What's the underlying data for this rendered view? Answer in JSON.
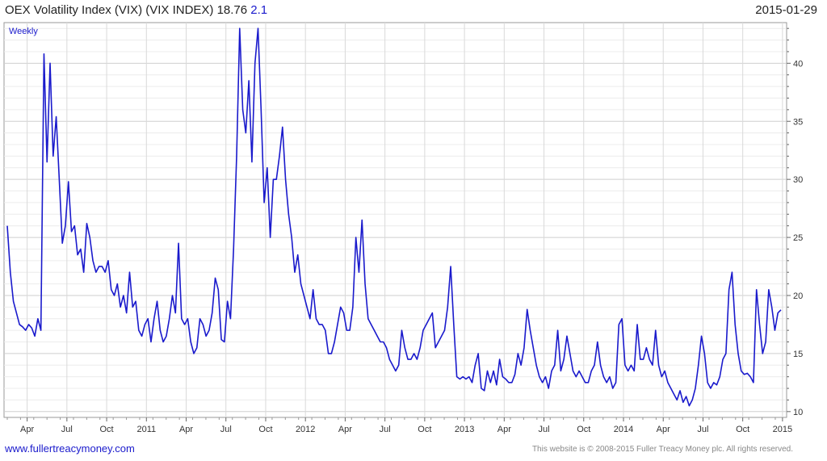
{
  "header": {
    "title": "OEX Volatility Index (VIX) (VIX INDEX) 18.76",
    "change": "2.1",
    "date": "2015-01-29"
  },
  "footer": {
    "site": "www.fullertreacymoney.com",
    "copyright": "This website is © 2008-2015 Fuller Treacy Money plc. All rights reserved."
  },
  "colors": {
    "line": "#1a1acc",
    "grid": "#d6d6d6",
    "frame": "#999999",
    "accent": "#1a1acc"
  },
  "chart_data": {
    "type": "line",
    "period_label": "Weekly",
    "ylim": [
      9.5,
      43.5
    ],
    "y_ticks": [
      10,
      15,
      20,
      25,
      30,
      35,
      40
    ],
    "x_tick_labels": [
      {
        "label": "Apr",
        "week": 6.5
      },
      {
        "label": "Jul",
        "week": 19.5
      },
      {
        "label": "Oct",
        "week": 32.5
      },
      {
        "label": "2011",
        "week": 45.5
      },
      {
        "label": "Apr",
        "week": 58.5
      },
      {
        "label": "Jul",
        "week": 71.5
      },
      {
        "label": "Oct",
        "week": 84.5
      },
      {
        "label": "2012",
        "week": 97.5
      },
      {
        "label": "Apr",
        "week": 110.5
      },
      {
        "label": "Jul",
        "week": 123.5
      },
      {
        "label": "Oct",
        "week": 136.5
      },
      {
        "label": "2013",
        "week": 149.5
      },
      {
        "label": "Apr",
        "week": 162.5
      },
      {
        "label": "Jul",
        "week": 175.5
      },
      {
        "label": "Oct",
        "week": 188.5
      },
      {
        "label": "2014",
        "week": 201.5
      },
      {
        "label": "Apr",
        "week": 214.5
      },
      {
        "label": "Jul",
        "week": 227.5
      },
      {
        "label": "Oct",
        "week": 240.5
      },
      {
        "label": "2015",
        "week": 253.5
      }
    ],
    "series": [
      {
        "values": [
          26.0,
          22.0,
          19.5,
          18.5,
          17.5,
          17.3,
          17.0,
          17.5,
          17.2,
          16.5,
          18.0,
          17.0,
          40.8,
          31.5,
          40.0,
          32.0,
          35.4,
          30.0,
          24.5,
          26.0,
          29.8,
          25.5,
          26.0,
          23.5,
          24.0,
          22.0,
          26.2,
          25.0,
          23.0,
          22.0,
          22.5,
          22.5,
          22.0,
          23.0,
          20.5,
          20.0,
          21.0,
          19.0,
          20.0,
          18.5,
          22.0,
          19.0,
          19.5,
          17.0,
          16.5,
          17.5,
          18.0,
          16.0,
          18.0,
          19.5,
          17.0,
          16.0,
          16.5,
          18.0,
          20.0,
          18.5,
          24.5,
          18.0,
          17.5,
          18.0,
          16.0,
          15.0,
          15.5,
          18.0,
          17.5,
          16.5,
          17.0,
          18.5,
          21.5,
          20.5,
          16.2,
          16.0,
          19.5,
          18.0,
          24.0,
          32.0,
          43.0,
          36.0,
          34.0,
          38.5,
          31.5,
          40.0,
          43.0,
          36.0,
          28.0,
          31.0,
          25.0,
          30.0,
          30.0,
          32.0,
          34.5,
          30.0,
          27.0,
          25.0,
          22.0,
          23.5,
          21.0,
          20.0,
          19.0,
          18.0,
          20.5,
          18.0,
          17.5,
          17.5,
          17.0,
          15.0,
          15.0,
          16.0,
          17.5,
          19.0,
          18.5,
          17.0,
          17.0,
          19.0,
          25.0,
          22.0,
          26.5,
          21.0,
          18.0,
          17.5,
          17.0,
          16.5,
          16.0,
          16.0,
          15.5,
          14.5,
          14.0,
          13.5,
          14.0,
          17.0,
          15.5,
          14.5,
          14.5,
          15.0,
          14.5,
          15.5,
          17.0,
          17.5,
          18.0,
          18.5,
          15.5,
          16.0,
          16.5,
          17.0,
          19.0,
          22.5,
          17.5,
          13.0,
          12.8,
          13.0,
          12.8,
          13.0,
          12.5,
          14.0,
          15.0,
          12.0,
          11.8,
          13.5,
          12.5,
          13.5,
          12.3,
          14.5,
          13.0,
          12.8,
          12.5,
          12.5,
          13.2,
          15.0,
          14.0,
          15.5,
          18.8,
          17.0,
          15.5,
          14.0,
          13.0,
          12.5,
          13.0,
          12.0,
          13.5,
          14.0,
          17.0,
          13.5,
          14.5,
          16.5,
          15.0,
          13.5,
          13.0,
          13.5,
          13.0,
          12.5,
          12.5,
          13.5,
          14.0,
          16.0,
          14.0,
          13.0,
          12.5,
          13.0,
          12.0,
          12.5,
          17.5,
          18.0,
          14.0,
          13.5,
          14.0,
          13.5,
          17.5,
          14.5,
          14.5,
          15.5,
          14.5,
          14.0,
          17.0,
          14.0,
          13.0,
          13.5,
          12.5,
          12.0,
          11.5,
          11.0,
          11.8,
          10.8,
          11.3,
          10.5,
          11.0,
          12.0,
          14.0,
          16.5,
          15.0,
          12.5,
          12.0,
          12.5,
          12.3,
          13.0,
          14.5,
          15.0,
          20.5,
          22.0,
          17.5,
          15.0,
          13.5,
          13.2,
          13.3,
          13.0,
          12.5,
          20.5,
          17.5,
          15.0,
          16.0,
          20.5,
          19.0,
          17.0,
          18.5,
          18.76
        ]
      }
    ]
  }
}
